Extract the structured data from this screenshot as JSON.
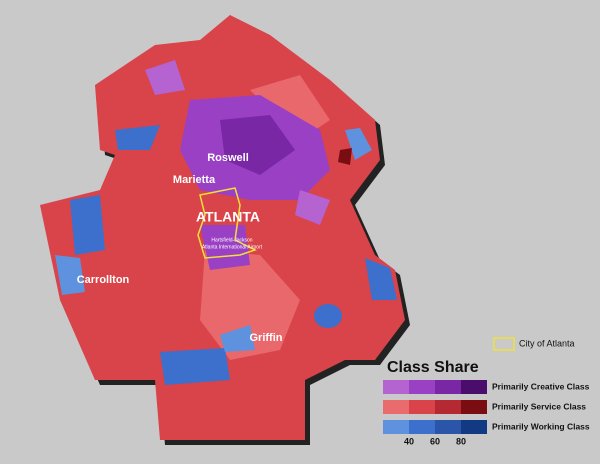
{
  "map": {
    "labels": [
      {
        "text": "Roswell"
      },
      {
        "text": "Marietta"
      },
      {
        "text": "ATLANTA"
      },
      {
        "text": "Hartsfield-Jackson"
      },
      {
        "text": "Atlanta International Airport"
      },
      {
        "text": "Carrollton"
      },
      {
        "text": "Griffin"
      }
    ]
  },
  "legend": {
    "outline_label": "City of Atlanta",
    "title": "Class Share",
    "rows": [
      {
        "label": "Primarily Creative Class",
        "colors": [
          "#b463d1",
          "#9a40c4",
          "#7a27a6",
          "#4a0d6b"
        ]
      },
      {
        "label": "Primarily Service Class",
        "colors": [
          "#ea6b6e",
          "#d9434a",
          "#b52a32",
          "#7a0d12"
        ]
      },
      {
        "label": "Primarily Working Class",
        "colors": [
          "#5e92de",
          "#3d70cc",
          "#2b55a8",
          "#113a82"
        ]
      }
    ],
    "ticks": [
      40,
      60,
      80
    ]
  }
}
